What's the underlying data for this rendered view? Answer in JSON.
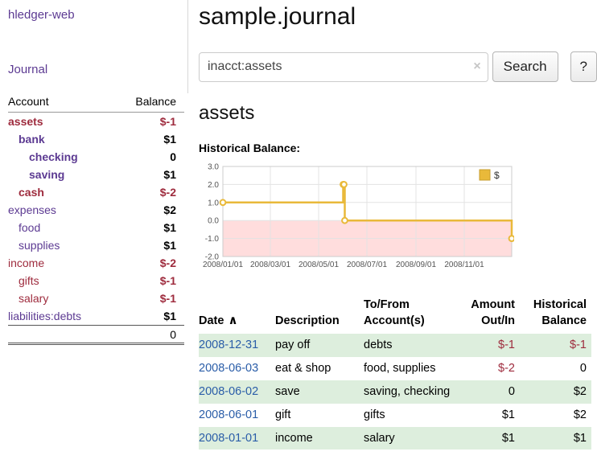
{
  "colors": {
    "purple": "#5c3a92",
    "red": "#9e2b3d",
    "blue": "#2a5da8",
    "green": "#ddeedd"
  },
  "sidebar": {
    "app_title": "hledger-web",
    "journal_link": "Journal",
    "header_account": "Account",
    "header_balance": "Balance",
    "accounts": [
      {
        "name": "assets",
        "balance": "$-1",
        "indent": 0,
        "bold": true,
        "name_negative": true,
        "balance_negative": true
      },
      {
        "name": "bank",
        "balance": "$1",
        "indent": 1,
        "bold": true,
        "name_negative": false,
        "balance_negative": false
      },
      {
        "name": "checking",
        "balance": "0",
        "indent": 2,
        "bold": true,
        "name_negative": false,
        "balance_negative": false
      },
      {
        "name": "saving",
        "balance": "$1",
        "indent": 2,
        "bold": true,
        "name_negative": false,
        "balance_negative": false
      },
      {
        "name": "cash",
        "balance": "$-2",
        "indent": 1,
        "bold": true,
        "name_negative": true,
        "balance_negative": true
      },
      {
        "name": "expenses",
        "balance": "$2",
        "indent": 0,
        "bold": false,
        "name_negative": false,
        "balance_negative": false
      },
      {
        "name": "food",
        "balance": "$1",
        "indent": 1,
        "bold": false,
        "name_negative": false,
        "balance_negative": false
      },
      {
        "name": "supplies",
        "balance": "$1",
        "indent": 1,
        "bold": false,
        "name_negative": false,
        "balance_negative": false
      },
      {
        "name": "income",
        "balance": "$-2",
        "indent": 0,
        "bold": false,
        "name_negative": true,
        "balance_negative": true
      },
      {
        "name": "gifts",
        "balance": "$-1",
        "indent": 1,
        "bold": false,
        "name_negative": true,
        "balance_negative": true
      },
      {
        "name": "salary",
        "balance": "$-1",
        "indent": 1,
        "bold": false,
        "name_negative": true,
        "balance_negative": true
      },
      {
        "name": "liabilities:debts",
        "balance": "$1",
        "indent": 0,
        "bold": false,
        "name_negative": false,
        "balance_negative": false
      }
    ],
    "total": "0"
  },
  "main": {
    "title": "sample.journal",
    "search": {
      "value": "inacct:assets",
      "clear_icon": "×",
      "button": "Search",
      "help_button": "?"
    },
    "account_heading": "assets",
    "chart_label": "Historical Balance:"
  },
  "chart_data": {
    "type": "line",
    "title": "Historical Balance",
    "step": true,
    "series": [
      {
        "name": "$",
        "points": [
          {
            "date": "2008-01-01",
            "value": 1
          },
          {
            "date": "2008-06-01",
            "value": 2
          },
          {
            "date": "2008-06-02",
            "value": 2
          },
          {
            "date": "2008-06-03",
            "value": 0
          },
          {
            "date": "2008-12-31",
            "value": -1
          }
        ]
      }
    ],
    "x_range": [
      "2008-01-01",
      "2008-12-31"
    ],
    "ylim": [
      -2,
      3
    ],
    "y_ticks": [
      3,
      2,
      1,
      0,
      -1,
      -2
    ],
    "x_ticks": [
      {
        "date": "2008-01-01",
        "label": "2008/01/01"
      },
      {
        "date": "2008-03-01",
        "label": "2008/03/01"
      },
      {
        "date": "2008-05-01",
        "label": "2008/05/01"
      },
      {
        "date": "2008-07-01",
        "label": "2008/07/01"
      },
      {
        "date": "2008-09-01",
        "label": "2008/09/01"
      },
      {
        "date": "2008-11-01",
        "label": "2008/11/01"
      }
    ],
    "legend": {
      "label": "$",
      "position": "top-right"
    },
    "line_color": "#e9b93a",
    "negative_region_color": "#ffdddd",
    "grid": true
  },
  "register": {
    "headers": [
      "Date",
      "Description",
      "To/From\nAccount(s)",
      "Amount\nOut/In",
      "Historical\nBalance"
    ],
    "sort_indicator": "∧",
    "rows": [
      {
        "date": "2008-12-31",
        "description": "pay off",
        "accounts": "debts",
        "amount": "$-1",
        "amount_negative": true,
        "balance": "$-1",
        "balance_negative": true
      },
      {
        "date": "2008-06-03",
        "description": "eat & shop",
        "accounts": "food, supplies",
        "amount": "$-2",
        "amount_negative": true,
        "balance": "0",
        "balance_negative": false
      },
      {
        "date": "2008-06-02",
        "description": "save",
        "accounts": "saving, checking",
        "amount": "0",
        "amount_negative": false,
        "balance": "$2",
        "balance_negative": false
      },
      {
        "date": "2008-06-01",
        "description": "gift",
        "accounts": "gifts",
        "amount": "$1",
        "amount_negative": false,
        "balance": "$2",
        "balance_negative": false
      },
      {
        "date": "2008-01-01",
        "description": "income",
        "accounts": "salary",
        "amount": "$1",
        "amount_negative": false,
        "balance": "$1",
        "balance_negative": false
      }
    ]
  }
}
